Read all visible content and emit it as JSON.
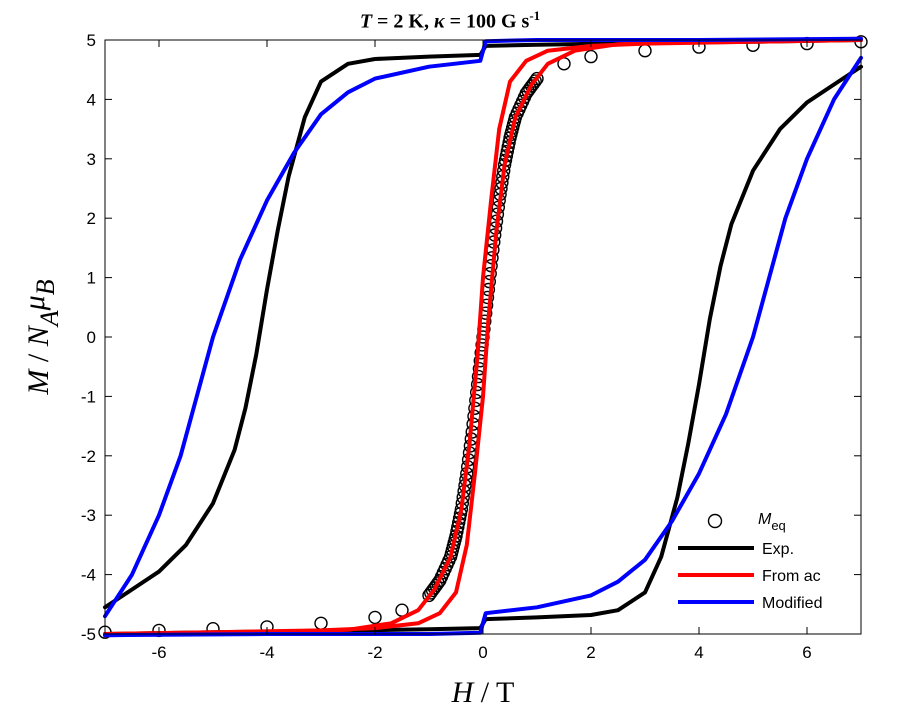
{
  "chart_data": {
    "type": "line",
    "title": "T = 2 K, κ = 100 G s-1",
    "title_parts": {
      "t_symbol": "T",
      "t_value": " = 2 K, ",
      "kappa_symbol": "κ",
      "kappa_value": " = 100 G s",
      "kappa_exponent": "-1"
    },
    "xlabel": "H / T",
    "ylabel": "M / NAμB",
    "xlim": [
      -7,
      7
    ],
    "ylim": [
      -5,
      5
    ],
    "x_ticks": [
      -6,
      -4,
      -2,
      0,
      2,
      4,
      6
    ],
    "y_ticks": [
      -5,
      -4,
      -3,
      -2,
      -1,
      0,
      1,
      2,
      3,
      4,
      5
    ],
    "grid": false,
    "legend_position": "bottom-right",
    "series": [
      {
        "name": "Meq",
        "marker": "open-circle",
        "color": "#000000",
        "points": [
          [
            -7.0,
            -4.97
          ],
          [
            -6.0,
            -4.94
          ],
          [
            -5.0,
            -4.91
          ],
          [
            -4.0,
            -4.88
          ],
          [
            -3.0,
            -4.82
          ],
          [
            -2.0,
            -4.72
          ],
          [
            -1.5,
            -4.6
          ],
          [
            -1.0,
            -4.35
          ],
          [
            -0.8,
            -4.1
          ],
          [
            -0.6,
            -3.7
          ],
          [
            -0.5,
            -3.35
          ],
          [
            -0.4,
            -2.9
          ],
          [
            -0.3,
            -2.3
          ],
          [
            -0.2,
            -1.6
          ],
          [
            -0.1,
            -0.8
          ],
          [
            0.0,
            0.0
          ],
          [
            0.1,
            0.8
          ],
          [
            0.2,
            1.6
          ],
          [
            0.3,
            2.3
          ],
          [
            0.4,
            2.9
          ],
          [
            0.5,
            3.35
          ],
          [
            0.6,
            3.7
          ],
          [
            0.8,
            4.1
          ],
          [
            1.0,
            4.35
          ],
          [
            1.5,
            4.6
          ],
          [
            2.0,
            4.72
          ],
          [
            3.0,
            4.82
          ],
          [
            4.0,
            4.88
          ],
          [
            5.0,
            4.91
          ],
          [
            6.0,
            4.94
          ],
          [
            7.0,
            4.97
          ]
        ]
      },
      {
        "name": "Exp.",
        "color": "#000000",
        "descending": [
          [
            7.0,
            5.0
          ],
          [
            5.0,
            4.97
          ],
          [
            3.0,
            4.95
          ],
          [
            1.0,
            4.92
          ],
          [
            0.05,
            4.9
          ],
          [
            -0.05,
            4.75
          ],
          [
            -1.0,
            4.72
          ],
          [
            -2.0,
            4.68
          ],
          [
            -2.5,
            4.6
          ],
          [
            -3.0,
            4.3
          ],
          [
            -3.3,
            3.7
          ],
          [
            -3.6,
            2.7
          ],
          [
            -3.8,
            1.8
          ],
          [
            -4.0,
            0.8
          ],
          [
            -4.2,
            -0.3
          ],
          [
            -4.4,
            -1.2
          ],
          [
            -4.6,
            -1.9
          ],
          [
            -5.0,
            -2.8
          ],
          [
            -5.5,
            -3.5
          ],
          [
            -6.0,
            -3.95
          ],
          [
            -6.5,
            -4.25
          ],
          [
            -7.0,
            -4.55
          ]
        ],
        "ascending": [
          [
            -7.0,
            -5.0
          ],
          [
            -5.0,
            -4.97
          ],
          [
            -3.0,
            -4.95
          ],
          [
            -1.0,
            -4.92
          ],
          [
            -0.05,
            -4.9
          ],
          [
            0.05,
            -4.75
          ],
          [
            1.0,
            -4.72
          ],
          [
            2.0,
            -4.68
          ],
          [
            2.5,
            -4.6
          ],
          [
            3.0,
            -4.3
          ],
          [
            3.3,
            -3.7
          ],
          [
            3.6,
            -2.7
          ],
          [
            3.8,
            -1.8
          ],
          [
            4.0,
            -0.8
          ],
          [
            4.2,
            0.3
          ],
          [
            4.4,
            1.2
          ],
          [
            4.6,
            1.9
          ],
          [
            5.0,
            2.8
          ],
          [
            5.5,
            3.5
          ],
          [
            6.0,
            3.95
          ],
          [
            6.5,
            4.25
          ],
          [
            7.0,
            4.55
          ]
        ]
      },
      {
        "name": "From ac",
        "color": "#ff0000",
        "descending": [
          [
            7.0,
            5.0
          ],
          [
            5.0,
            4.97
          ],
          [
            3.0,
            4.94
          ],
          [
            2.0,
            4.9
          ],
          [
            1.2,
            4.82
          ],
          [
            0.8,
            4.65
          ],
          [
            0.5,
            4.3
          ],
          [
            0.3,
            3.5
          ],
          [
            0.15,
            2.3
          ],
          [
            0.0,
            1.0
          ],
          [
            -0.1,
            -0.3
          ],
          [
            -0.25,
            -1.8
          ],
          [
            -0.4,
            -2.9
          ],
          [
            -0.6,
            -3.7
          ],
          [
            -0.9,
            -4.25
          ],
          [
            -1.2,
            -4.6
          ],
          [
            -1.7,
            -4.82
          ],
          [
            -2.5,
            -4.93
          ],
          [
            -4.0,
            -4.97
          ],
          [
            -7.0,
            -5.02
          ]
        ],
        "ascending": [
          [
            -7.0,
            -5.0
          ],
          [
            -5.0,
            -4.97
          ],
          [
            -3.0,
            -4.94
          ],
          [
            -2.0,
            -4.9
          ],
          [
            -1.2,
            -4.82
          ],
          [
            -0.8,
            -4.65
          ],
          [
            -0.5,
            -4.3
          ],
          [
            -0.3,
            -3.5
          ],
          [
            -0.15,
            -2.3
          ],
          [
            0.0,
            -1.0
          ],
          [
            0.1,
            0.3
          ],
          [
            0.25,
            1.8
          ],
          [
            0.4,
            2.9
          ],
          [
            0.6,
            3.7
          ],
          [
            0.9,
            4.25
          ],
          [
            1.2,
            4.6
          ],
          [
            1.7,
            4.82
          ],
          [
            2.5,
            4.93
          ],
          [
            4.0,
            4.97
          ],
          [
            7.0,
            5.02
          ]
        ]
      },
      {
        "name": "Modified",
        "color": "#0000ff",
        "descending": [
          [
            7.0,
            5.02
          ],
          [
            4.0,
            5.0
          ],
          [
            1.0,
            5.0
          ],
          [
            0.05,
            4.98
          ],
          [
            -0.05,
            4.65
          ],
          [
            -1.0,
            4.55
          ],
          [
            -2.0,
            4.35
          ],
          [
            -2.5,
            4.12
          ],
          [
            -3.0,
            3.75
          ],
          [
            -3.5,
            3.1
          ],
          [
            -4.0,
            2.3
          ],
          [
            -4.5,
            1.3
          ],
          [
            -5.0,
            0.0
          ],
          [
            -5.3,
            -1.0
          ],
          [
            -5.6,
            -2.0
          ],
          [
            -6.0,
            -3.0
          ],
          [
            -6.5,
            -4.0
          ],
          [
            -7.0,
            -4.7
          ]
        ],
        "ascending": [
          [
            -7.0,
            -5.02
          ],
          [
            -4.0,
            -5.0
          ],
          [
            -1.0,
            -5.0
          ],
          [
            -0.05,
            -4.98
          ],
          [
            0.05,
            -4.65
          ],
          [
            1.0,
            -4.55
          ],
          [
            2.0,
            -4.35
          ],
          [
            2.5,
            -4.12
          ],
          [
            3.0,
            -3.75
          ],
          [
            3.5,
            -3.1
          ],
          [
            4.0,
            -2.3
          ],
          [
            4.5,
            -1.3
          ],
          [
            5.0,
            0.0
          ],
          [
            5.3,
            1.0
          ],
          [
            5.6,
            2.0
          ],
          [
            6.0,
            3.0
          ],
          [
            6.5,
            4.0
          ],
          [
            7.0,
            4.7
          ]
        ]
      }
    ]
  }
}
